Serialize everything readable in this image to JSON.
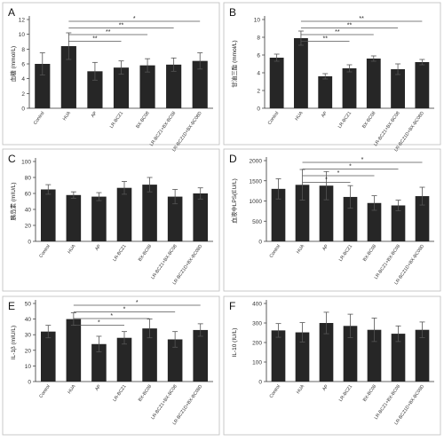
{
  "categories": [
    "Control",
    "HUA",
    "AP",
    "LR-BCZ1",
    "BX-BC08",
    "LR-BCZ1+BX-BC08",
    "LR-BCZ1D+BX-BC08D"
  ],
  "bar_color": "#262626",
  "chart_data": [
    {
      "type": "bar",
      "panel": "A",
      "ylabel": "血糖 (mmol/L)",
      "categories": [
        "Control",
        "HUA",
        "AP",
        "LR-BCZ1",
        "BX-BC08",
        "LR-BCZ1+BX-BC08",
        "LR-BCZ1D+BX-BC08D"
      ],
      "ylim": [
        0,
        12
      ],
      "ticks": [
        0,
        2,
        4,
        6,
        8,
        10,
        12
      ],
      "values": [
        6.0,
        8.4,
        5.0,
        5.5,
        5.8,
        5.9,
        6.4
      ],
      "errors": [
        1.5,
        1.8,
        1.2,
        0.9,
        0.9,
        0.9,
        1.1
      ],
      "sig": [
        {
          "from": 1,
          "to": 6,
          "label": "*"
        },
        {
          "from": 1,
          "to": 5,
          "label": "**"
        },
        {
          "from": 1,
          "to": 4,
          "label": "**"
        },
        {
          "from": 1,
          "to": 3,
          "label": "**"
        }
      ]
    },
    {
      "type": "bar",
      "panel": "B",
      "ylabel": "甘油三酯 (mmol/L)",
      "categories": [
        "Control",
        "HUA",
        "AP",
        "LR-BCZ1",
        "BX-BC08",
        "LR-BCZ1+BX-BC08",
        "LR-BCZ1D+BX-BC08D"
      ],
      "ylim": [
        0,
        10
      ],
      "ticks": [
        0,
        2,
        4,
        6,
        8,
        10
      ],
      "values": [
        5.7,
        7.9,
        3.6,
        4.5,
        5.6,
        4.4,
        5.2
      ],
      "errors": [
        0.4,
        0.8,
        0.3,
        0.4,
        0.3,
        0.6,
        0.3
      ],
      "sig": [
        {
          "from": 1,
          "to": 6,
          "label": "**"
        },
        {
          "from": 1,
          "to": 5,
          "label": "**"
        },
        {
          "from": 1,
          "to": 4,
          "label": "**"
        },
        {
          "from": 1,
          "to": 3,
          "label": "**"
        }
      ]
    },
    {
      "type": "bar",
      "panel": "C",
      "ylabel": "胰岛素 (mIU/L)",
      "categories": [
        "Control",
        "HUA",
        "AP",
        "LR-BCZ1",
        "BX-BC08",
        "LR-BCZ1+BX-BC08",
        "LR-BCZ1D+BX-BC08D"
      ],
      "ylim": [
        0,
        100
      ],
      "ticks": [
        0,
        20,
        40,
        60,
        80,
        100
      ],
      "values": [
        65,
        58,
        56,
        67,
        71,
        56,
        60
      ],
      "errors": [
        6,
        4,
        5,
        8,
        9,
        9,
        7
      ],
      "sig": []
    },
    {
      "type": "bar",
      "panel": "D",
      "ylabel": "血液中LPS(EU/L)",
      "categories": [
        "Control",
        "HUA",
        "AP",
        "LR-BCZ1",
        "BX-BC08",
        "LR-BCZ1+BX-BC08",
        "LR-BCZ1D+BX-BC08D"
      ],
      "ylim": [
        0,
        2000
      ],
      "ticks": [
        0,
        500,
        1000,
        1500,
        2000
      ],
      "values": [
        1300,
        1400,
        1380,
        1100,
        950,
        890,
        1120
      ],
      "errors": [
        250,
        380,
        350,
        280,
        180,
        130,
        220
      ],
      "sig": [
        {
          "from": 1,
          "to": 6,
          "label": "*"
        },
        {
          "from": 1,
          "to": 5,
          "label": "*"
        },
        {
          "from": 1,
          "to": 4,
          "label": "*"
        },
        {
          "from": 1,
          "to": 3,
          "label": "*"
        }
      ]
    },
    {
      "type": "bar",
      "panel": "E",
      "ylabel": "IL-1β (mIU/L)",
      "categories": [
        "Control",
        "HUA",
        "AP",
        "LR-BCZ1",
        "BX-BC08",
        "LR-BCZ1+BX-BC08",
        "LR-BCZ1D+BX-BC08D"
      ],
      "ylim": [
        0,
        50
      ],
      "ticks": [
        0,
        10,
        20,
        30,
        40,
        50
      ],
      "values": [
        32,
        40,
        24,
        28,
        34,
        27,
        33
      ],
      "errors": [
        4,
        4,
        5,
        4,
        6,
        5,
        4
      ],
      "sig": [
        {
          "from": 1,
          "to": 6,
          "label": "*"
        },
        {
          "from": 1,
          "to": 5,
          "label": "*"
        },
        {
          "from": 1,
          "to": 4,
          "label": "*"
        },
        {
          "from": 1,
          "to": 3,
          "label": "*"
        }
      ]
    },
    {
      "type": "bar",
      "panel": "F",
      "ylabel": "IL-10 (IU/L)",
      "categories": [
        "Control",
        "HUA",
        "AP",
        "LR-BCZ1",
        "BX-BC08",
        "LR-BCZ1+BX-BC08",
        "LR-BCZ1D+BX-BC08D"
      ],
      "ylim": [
        0,
        400
      ],
      "ticks": [
        0,
        100,
        200,
        300,
        400
      ],
      "values": [
        262,
        252,
        300,
        285,
        265,
        245,
        265
      ],
      "errors": [
        35,
        50,
        55,
        60,
        60,
        40,
        40
      ],
      "sig": []
    }
  ]
}
